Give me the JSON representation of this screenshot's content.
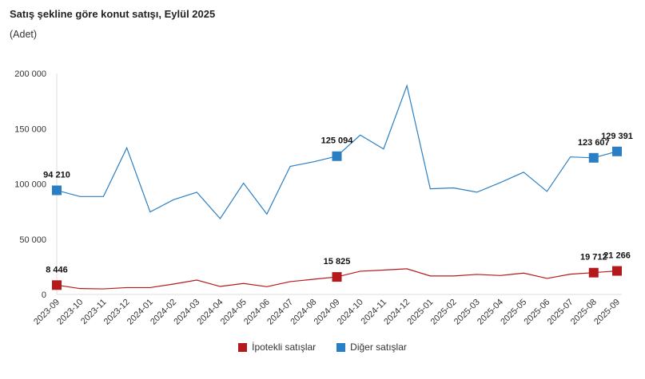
{
  "chart_data": {
    "type": "line",
    "title": "Satış şekline göre konut satışı, Eylül 2025",
    "subtitle": "(Adet)",
    "xlabel": "",
    "ylabel": "",
    "ylim": [
      0,
      200000
    ],
    "yticks": [
      0,
      50000,
      100000,
      150000,
      200000
    ],
    "ytick_labels": [
      "0",
      "50 000",
      "100 000",
      "150 000",
      "200 000"
    ],
    "grid": false,
    "legend_position": "bottom",
    "categories": [
      "2023-09",
      "2023-10",
      "2023-11",
      "2023-12",
      "2024-01",
      "2024-02",
      "2024-03",
      "2024-04",
      "2024-05",
      "2024-06",
      "2024-07",
      "2024-08",
      "2024-09",
      "2024-10",
      "2024-11",
      "2024-12",
      "2025-01",
      "2025-02",
      "2025-03",
      "2025-04",
      "2025-05",
      "2025-06",
      "2025-07",
      "2025-08",
      "2025-09"
    ],
    "series": [
      {
        "name": "İpotekli satışlar",
        "color": "#b5191c",
        "values": [
          8446,
          5300,
          5000,
          6200,
          6200,
          9400,
          13000,
          7200,
          9900,
          7000,
          11600,
          13700,
          15825,
          21000,
          22000,
          23200,
          16700,
          16700,
          18100,
          17100,
          19300,
          14500,
          18300,
          19712,
          21266
        ],
        "labels": {
          "0": "8 446",
          "12": "15 825",
          "23": "19 712",
          "24": "21 266"
        }
      },
      {
        "name": "Diğer satışlar",
        "color": "#2a7fc4",
        "values": [
          94210,
          88600,
          88600,
          132600,
          74600,
          85700,
          92500,
          68600,
          100700,
          72700,
          115900,
          120000,
          125094,
          144200,
          131600,
          188900,
          95600,
          96400,
          92500,
          101200,
          110600,
          93200,
          124400,
          123607,
          129391
        ],
        "labels": {
          "0": "94 210",
          "12": "125 094",
          "23": "123 607",
          "24": "129 391"
        }
      }
    ]
  }
}
